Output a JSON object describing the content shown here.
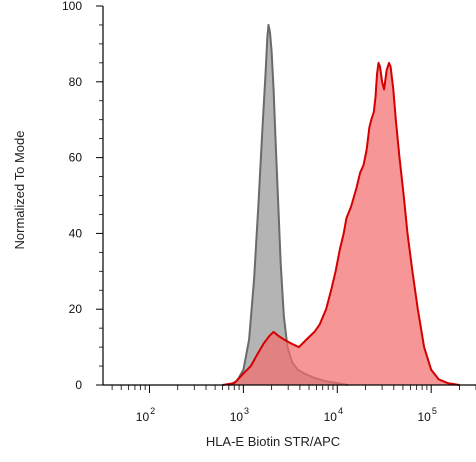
{
  "chart_data": {
    "type": "area",
    "xlabel": "HLA-E Biotin STR/APC",
    "ylabel": "Normalized To Mode",
    "x_scale": "log",
    "xlim": [
      32,
      300000
    ],
    "ylim": [
      0,
      100
    ],
    "y_ticks": [
      "0",
      "20",
      "40",
      "60",
      "80",
      "100"
    ],
    "x_ticks": [
      {
        "base": "10",
        "exp": "2"
      },
      {
        "base": "10",
        "exp": "3"
      },
      {
        "base": "10",
        "exp": "4"
      },
      {
        "base": "10",
        "exp": "5"
      }
    ],
    "grid": false,
    "series": [
      {
        "fill": "#b4b4b4",
        "stroke": "#6a6a6a",
        "points": [
          [
            700,
            0
          ],
          [
            850,
            1
          ],
          [
            1000,
            4
          ],
          [
            1150,
            12
          ],
          [
            1300,
            28
          ],
          [
            1450,
            48
          ],
          [
            1600,
            68
          ],
          [
            1720,
            82
          ],
          [
            1800,
            92
          ],
          [
            1850,
            95
          ],
          [
            1920,
            93
          ],
          [
            2000,
            88
          ],
          [
            2100,
            78
          ],
          [
            2200,
            65
          ],
          [
            2350,
            48
          ],
          [
            2500,
            32
          ],
          [
            2700,
            18
          ],
          [
            2950,
            10
          ],
          [
            3300,
            6
          ],
          [
            3800,
            4
          ],
          [
            4500,
            3
          ],
          [
            5500,
            2
          ],
          [
            7500,
            1
          ],
          [
            10000,
            0.5
          ],
          [
            13000,
            0
          ]
        ]
      },
      {
        "fill": "#f46d6d",
        "stroke": "#d40000",
        "points": [
          [
            600,
            0
          ],
          [
            800,
            0.5
          ],
          [
            1000,
            3
          ],
          [
            1200,
            5
          ],
          [
            1400,
            8
          ],
          [
            1650,
            11
          ],
          [
            1900,
            13
          ],
          [
            2100,
            14
          ],
          [
            2350,
            13
          ],
          [
            2700,
            12
          ],
          [
            3200,
            11
          ],
          [
            3900,
            10
          ],
          [
            4700,
            12
          ],
          [
            5700,
            14
          ],
          [
            6500,
            16
          ],
          [
            7600,
            20
          ],
          [
            8600,
            25
          ],
          [
            9600,
            30
          ],
          [
            10700,
            36
          ],
          [
            11700,
            40
          ],
          [
            12500,
            44
          ],
          [
            14000,
            47
          ],
          [
            16000,
            52
          ],
          [
            17500,
            56
          ],
          [
            19000,
            58
          ],
          [
            20500,
            62
          ],
          [
            22000,
            68
          ],
          [
            23000,
            70
          ],
          [
            24500,
            72
          ],
          [
            25500,
            76
          ],
          [
            26500,
            82
          ],
          [
            27500,
            85
          ],
          [
            28500,
            84
          ],
          [
            30000,
            80
          ],
          [
            31500,
            78
          ],
          [
            33500,
            83
          ],
          [
            35500,
            85
          ],
          [
            37000,
            84
          ],
          [
            39500,
            78
          ],
          [
            42000,
            70
          ],
          [
            46000,
            60
          ],
          [
            51000,
            50
          ],
          [
            56000,
            40
          ],
          [
            63000,
            30
          ],
          [
            72000,
            20
          ],
          [
            84000,
            10
          ],
          [
            100000,
            4
          ],
          [
            120000,
            1.5
          ],
          [
            150000,
            0.5
          ],
          [
            200000,
            0
          ]
        ]
      }
    ]
  }
}
